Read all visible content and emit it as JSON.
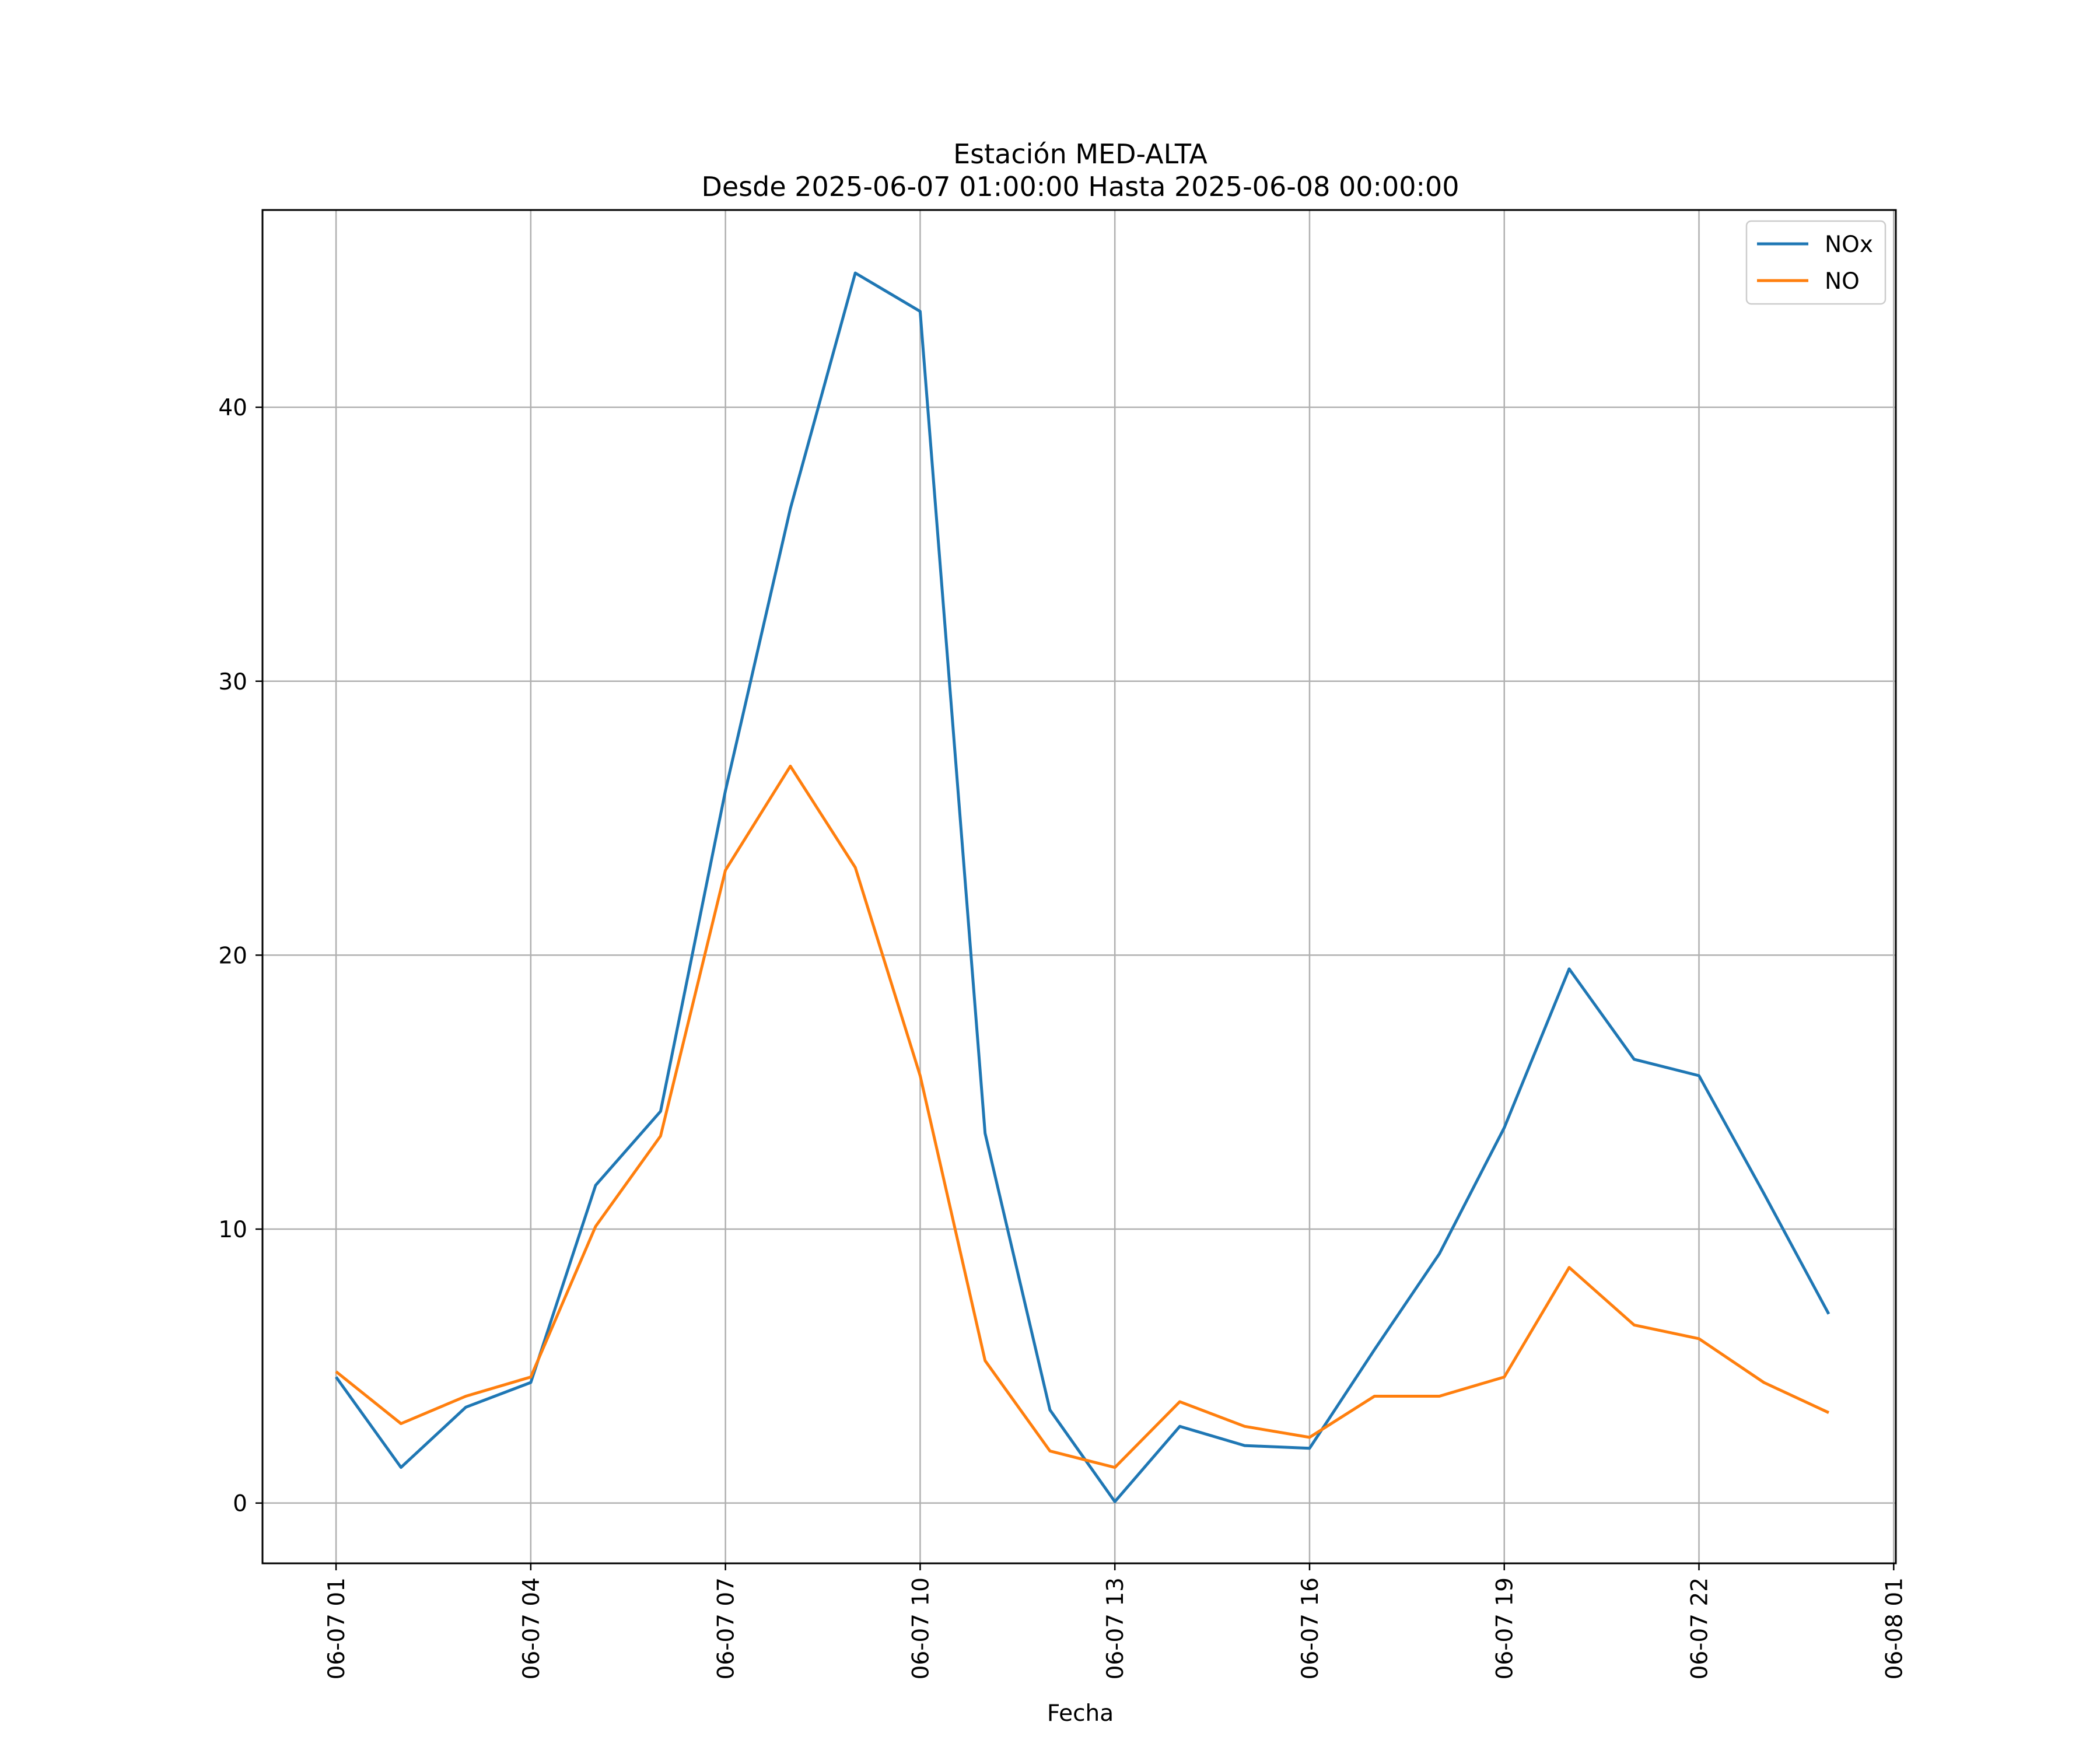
{
  "chart_data": {
    "type": "line",
    "title": "Estación MED-ALTA",
    "subtitle": "Desde 2025-06-07 01:00:00 Hasta 2025-06-08 00:00:00",
    "xlabel": "Fecha",
    "ylabel": "",
    "x": [
      "2025-06-07 01:00",
      "2025-06-07 02:00",
      "2025-06-07 03:00",
      "2025-06-07 04:00",
      "2025-06-07 05:00",
      "2025-06-07 06:00",
      "2025-06-07 07:00",
      "2025-06-07 08:00",
      "2025-06-07 09:00",
      "2025-06-07 10:00",
      "2025-06-07 11:00",
      "2025-06-07 12:00",
      "2025-06-07 13:00",
      "2025-06-07 14:00",
      "2025-06-07 15:00",
      "2025-06-07 16:00",
      "2025-06-07 17:00",
      "2025-06-07 18:00",
      "2025-06-07 19:00",
      "2025-06-07 20:00",
      "2025-06-07 21:00",
      "2025-06-07 22:00",
      "2025-06-07 23:00",
      "2025-06-08 00:00"
    ],
    "series": [
      {
        "name": "NOx",
        "color": "#1f77b4",
        "values": [
          4.6,
          1.3,
          3.5,
          4.4,
          11.6,
          14.3,
          26.0,
          36.3,
          44.9,
          43.5,
          13.5,
          3.4,
          0.05,
          2.8,
          2.1,
          2.0,
          5.6,
          9.1,
          13.7,
          19.5,
          16.2,
          15.6,
          11.3,
          6.9
        ]
      },
      {
        "name": "NO",
        "color": "#ff7f0e",
        "values": [
          4.8,
          2.9,
          3.9,
          4.6,
          10.1,
          13.4,
          23.1,
          26.9,
          23.2,
          15.6,
          5.2,
          1.9,
          1.3,
          3.7,
          2.8,
          2.4,
          3.9,
          3.9,
          4.6,
          8.6,
          6.5,
          6.0,
          4.4,
          3.3
        ]
      }
    ],
    "x_ticks": [
      "06-07 01",
      "06-07 04",
      "06-07 07",
      "06-07 10",
      "06-07 13",
      "06-07 16",
      "06-07 19",
      "06-07 22",
      "06-08 01"
    ],
    "y_ticks": [
      "0",
      "10",
      "20",
      "30",
      "40"
    ],
    "xlim": [
      "2025-06-06 23:52",
      "2025-06-08 01:02"
    ],
    "ylim": [
      -2.2,
      47.2
    ],
    "grid": true,
    "legend_position": "top-right"
  }
}
